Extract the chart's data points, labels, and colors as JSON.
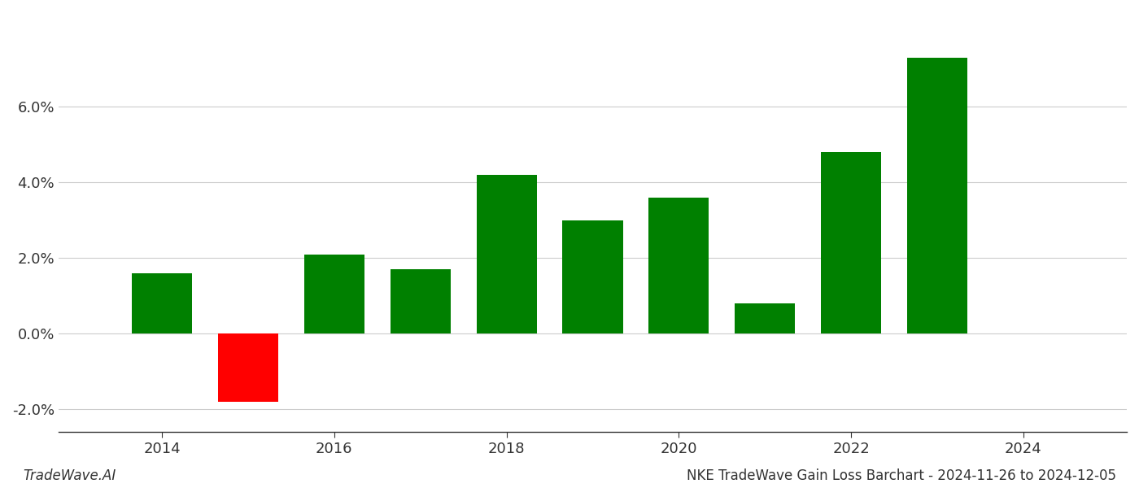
{
  "years": [
    2014,
    2015,
    2016,
    2017,
    2018,
    2019,
    2020,
    2021,
    2022,
    2023
  ],
  "values": [
    0.016,
    -0.018,
    0.021,
    0.017,
    0.042,
    0.03,
    0.036,
    0.008,
    0.048,
    0.073
  ],
  "colors": [
    "#008000",
    "#ff0000",
    "#008000",
    "#008000",
    "#008000",
    "#008000",
    "#008000",
    "#008000",
    "#008000",
    "#008000"
  ],
  "footer_left": "TradeWave.AI",
  "footer_right": "NKE TradeWave Gain Loss Barchart - 2024-11-26 to 2024-12-05",
  "xlim": [
    2012.8,
    2025.2
  ],
  "ylim": [
    -0.026,
    0.085
  ],
  "yticks": [
    -0.02,
    0.0,
    0.02,
    0.04,
    0.06
  ],
  "xticks": [
    2014,
    2016,
    2018,
    2020,
    2022,
    2024
  ],
  "bar_width": 0.7,
  "background_color": "#ffffff",
  "grid_color": "#cccccc",
  "axis_color": "#333333",
  "tick_fontsize": 13,
  "footer_fontsize": 12
}
